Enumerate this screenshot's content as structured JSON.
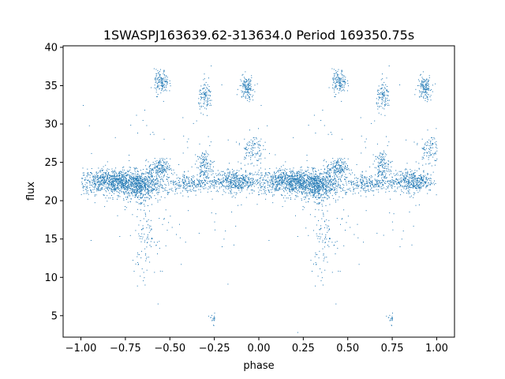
{
  "chart_data": {
    "type": "scatter",
    "title": "1SWASPJ163639.62-313634.0 Period 169350.75s",
    "xlabel": "phase",
    "ylabel": "flux",
    "xlim": [
      -1.1,
      1.1
    ],
    "ylim": [
      2.2,
      40.2
    ],
    "xticks": [
      -1.0,
      -0.75,
      -0.5,
      -0.25,
      0.0,
      0.25,
      0.5,
      0.75,
      1.0
    ],
    "xtick_labels": [
      "−1.00",
      "−0.75",
      "−0.50",
      "−0.25",
      "0.00",
      "0.25",
      "0.50",
      "0.75",
      "1.00"
    ],
    "yticks": [
      5,
      10,
      15,
      20,
      25,
      30,
      35,
      40
    ],
    "ytick_labels": [
      "5",
      "10",
      "15",
      "20",
      "25",
      "30",
      "35",
      "40"
    ],
    "grid": false,
    "marker_color": "#1f77b4",
    "series": [
      {
        "values_description": "phase-folded light curve, mirrored over phase -1..0 and 0..1",
        "clusters": [
          {
            "x_center": 0.2,
            "x_spread": 0.12,
            "y_center": 22.5,
            "y_spread": 0.8,
            "weight": 0.3
          },
          {
            "x_center": 0.33,
            "x_spread": 0.06,
            "y_center": 21.8,
            "y_spread": 0.9,
            "weight": 0.12
          },
          {
            "x_center": 0.44,
            "x_spread": 0.03,
            "y_center": 24.3,
            "y_spread": 0.6,
            "weight": 0.05
          },
          {
            "x_center": 0.62,
            "x_spread": 0.08,
            "y_center": 22.3,
            "y_spread": 0.6,
            "weight": 0.07
          },
          {
            "x_center": 0.69,
            "x_spread": 0.02,
            "y_center": 24.5,
            "y_spread": 1.0,
            "weight": 0.04
          },
          {
            "x_center": 0.86,
            "x_spread": 0.06,
            "y_center": 22.6,
            "y_spread": 0.7,
            "weight": 0.12
          },
          {
            "x_center": 0.96,
            "x_spread": 0.03,
            "y_center": 26.8,
            "y_spread": 1.0,
            "weight": 0.03
          },
          {
            "x_center": 0.45,
            "x_spread": 0.02,
            "y_center": 35.5,
            "y_spread": 0.8,
            "weight": 0.04
          },
          {
            "x_center": 0.7,
            "x_spread": 0.02,
            "y_center": 33.6,
            "y_spread": 0.9,
            "weight": 0.03
          },
          {
            "x_center": 0.93,
            "x_spread": 0.02,
            "y_center": 34.8,
            "y_spread": 0.8,
            "weight": 0.04
          },
          {
            "x_center": 0.36,
            "x_spread": 0.03,
            "y_center": 16.0,
            "y_spread": 3.0,
            "weight": 0.03
          },
          {
            "x_center": 0.74,
            "x_spread": 0.01,
            "y_center": 4.7,
            "y_spread": 0.4,
            "weight": 0.005
          },
          {
            "x_center": 0.5,
            "x_spread": 0.28,
            "y_center": 21.0,
            "y_spread": 6.0,
            "weight": 0.04
          }
        ]
      }
    ]
  }
}
